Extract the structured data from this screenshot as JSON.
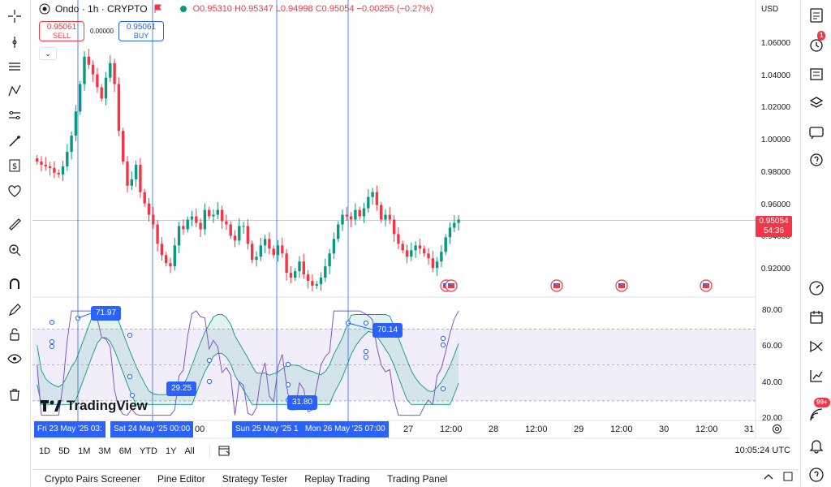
{
  "legend": {
    "symbol": "Ondo · 1h · CRYPTO",
    "open": "O0.95310",
    "high": "H0.95347",
    "low": "L0.94998",
    "close": "C0.95054",
    "change": "−0.00255 (−0.27%)"
  },
  "trade": {
    "sell_price": "0.95061",
    "sell_label": "SELL",
    "spread": "0.00000",
    "buy_price": "0.95061",
    "buy_label": "BUY"
  },
  "currency": "USD",
  "price_axis": [
    "1.06000",
    "1.04000",
    "1.02000",
    "1.00000",
    "0.98000",
    "0.96000",
    "0.94000",
    "0.92000"
  ],
  "last_price": {
    "value": "0.95054",
    "countdown": "54:36"
  },
  "rsi_axis": [
    "80.00",
    "60.00",
    "40.00",
    "20.00"
  ],
  "rsi_tags": [
    "71.97",
    "29.25",
    "31.80",
    "70.14"
  ],
  "x_axis": {
    "ticks": [
      "00",
      "27",
      "12:00",
      "28",
      "12:00",
      "29",
      "12:00",
      "30",
      "12:00",
      "31"
    ],
    "highlights": [
      "Fri 23 May '25   03:",
      "Sat 24 May '25   00:00",
      "Sun 25 May '25   1",
      "Mon 26 May '25   07:00"
    ]
  },
  "ranges": [
    "1D",
    "5D",
    "1M",
    "3M",
    "6M",
    "YTD",
    "1Y",
    "All"
  ],
  "clock": "10:05:24 UTC",
  "bottom_tabs": [
    "Crypto Pairs Screener",
    "Pine Editor",
    "Strategy Tester",
    "Replay Trading",
    "Trading Panel"
  ],
  "branding": "TradingView",
  "notifications": {
    "alerts": "1",
    "ideas": "99+"
  },
  "colors": {
    "up": "#089981",
    "down": "#f23645",
    "accent": "#2962ff",
    "rsi": "#7e57c2"
  },
  "chart_data": {
    "type": "candlestick",
    "interval": "1h",
    "y_range": [
      0.905,
      1.075
    ],
    "close_series": [
      0.987,
      0.985,
      0.984,
      0.983,
      0.98,
      0.979,
      0.984,
      0.993,
      1.003,
      1.018,
      1.035,
      1.052,
      1.047,
      1.041,
      1.033,
      1.026,
      1.039,
      1.048,
      1.035,
      1.006,
      0.987,
      0.972,
      0.976,
      0.985,
      0.968,
      0.961,
      0.954,
      0.948,
      0.936,
      0.929,
      0.924,
      0.922,
      0.935,
      0.947,
      0.945,
      0.951,
      0.953,
      0.949,
      0.945,
      0.957,
      0.953,
      0.954,
      0.957,
      0.95,
      0.948,
      0.941,
      0.938,
      0.947,
      0.947,
      0.936,
      0.926,
      0.928,
      0.935,
      0.939,
      0.933,
      0.929,
      0.935,
      0.93,
      0.918,
      0.915,
      0.919,
      0.925,
      0.917,
      0.913,
      0.91,
      0.911,
      0.915,
      0.922,
      0.93,
      0.939,
      0.948,
      0.954,
      0.953,
      0.951,
      0.957,
      0.953,
      0.958,
      0.965,
      0.968,
      0.96,
      0.951,
      0.954,
      0.951,
      0.942,
      0.936,
      0.932,
      0.928,
      0.932,
      0.935,
      0.933,
      0.93,
      0.927,
      0.921,
      0.925,
      0.931,
      0.94,
      0.946,
      0.949,
      0.951
    ],
    "rsi_range": [
      20,
      85
    ],
    "rsi_bands": [
      30,
      50,
      70
    ]
  }
}
